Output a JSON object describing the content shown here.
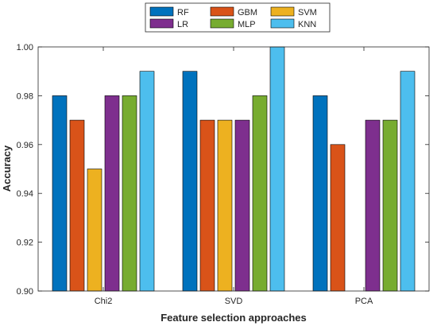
{
  "chart_data": {
    "type": "bar",
    "title": "",
    "xlabel": "Feature selection approaches",
    "ylabel": "Accuracy",
    "categories": [
      "Chi2",
      "SVD",
      "PCA"
    ],
    "ylim": [
      0.9,
      1.0
    ],
    "yticks": [
      "0.90",
      "0.92",
      "0.94",
      "0.96",
      "0.98",
      "1.00"
    ],
    "grid": false,
    "legend_position": "top-center",
    "series": [
      {
        "name": "RF",
        "color": "#0072BD",
        "values": [
          0.98,
          0.99,
          0.98
        ]
      },
      {
        "name": "GBM",
        "color": "#D95319",
        "values": [
          0.97,
          0.97,
          0.96
        ]
      },
      {
        "name": "SVM",
        "color": "#EDB120",
        "values": [
          0.95,
          0.97,
          0.9
        ]
      },
      {
        "name": "LR",
        "color": "#7E2F8E",
        "values": [
          0.98,
          0.97,
          0.97
        ]
      },
      {
        "name": "MLP",
        "color": "#77AC30",
        "values": [
          0.98,
          0.98,
          0.97
        ]
      },
      {
        "name": "KNN",
        "color": "#4DBEEE",
        "values": [
          0.99,
          1.0,
          0.99
        ]
      }
    ]
  }
}
